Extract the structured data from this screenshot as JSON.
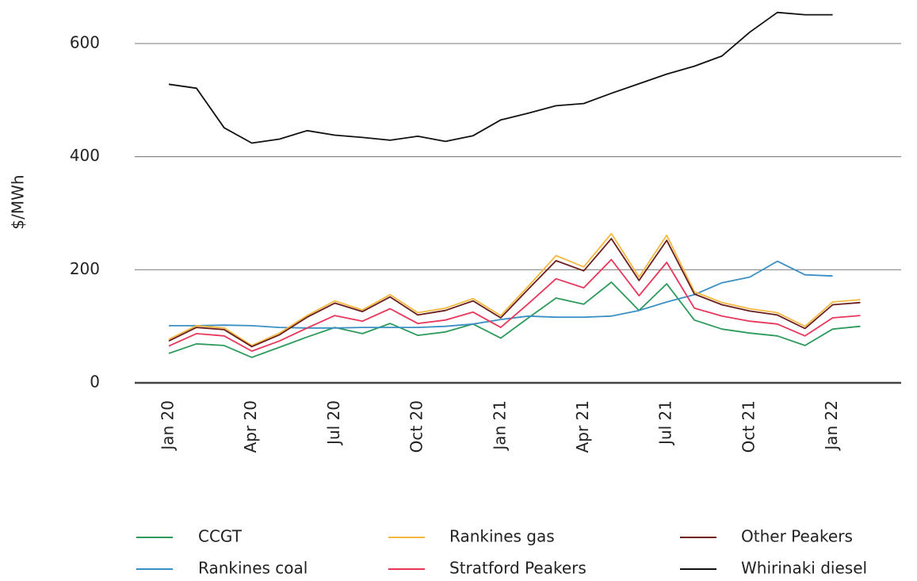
{
  "chart_data": {
    "type": "line",
    "y_label": "$/MWh",
    "categories": [
      "Jan 20",
      null,
      null,
      "Apr 20",
      null,
      null,
      "Jul 20",
      null,
      null,
      "Oct 20",
      null,
      null,
      "Jan 21",
      null,
      null,
      "Apr 21",
      null,
      null,
      "Jul 21",
      null,
      null,
      "Oct 21",
      null,
      null,
      "Jan 22",
      null
    ],
    "ylim": [
      0,
      670
    ],
    "yticks": [
      0,
      200,
      400,
      600
    ],
    "grid": true,
    "series": [
      {
        "name": "CCGT",
        "color": "#2e9a5c",
        "values": [
          52,
          69,
          66,
          45,
          63,
          81,
          98,
          87,
          105,
          84,
          90,
          104,
          79,
          115,
          150,
          139,
          178,
          128,
          175,
          111,
          95,
          88,
          83,
          66,
          95,
          100
        ]
      },
      {
        "name": "Rankines coal",
        "color": "#3a8fc4",
        "values": [
          101,
          101,
          102,
          101,
          98,
          97,
          97,
          98,
          98,
          98,
          100,
          104,
          112,
          118,
          116,
          116,
          118,
          128,
          143,
          156,
          177,
          187,
          215,
          191,
          189,
          null
        ]
      },
      {
        "name": "Rankines gas",
        "color": "#f5b942",
        "values": [
          77,
          101,
          97,
          66,
          88,
          119,
          145,
          129,
          156,
          124,
          132,
          149,
          119,
          171,
          225,
          205,
          264,
          187,
          261,
          161,
          142,
          131,
          124,
          100,
          143,
          147
        ]
      },
      {
        "name": "Stratford Peakers",
        "color": "#e8375a",
        "values": [
          65,
          87,
          83,
          56,
          74,
          97,
          119,
          109,
          131,
          105,
          111,
          125,
          98,
          140,
          184,
          168,
          218,
          154,
          213,
          132,
          118,
          109,
          104,
          83,
          115,
          119
        ]
      },
      {
        "name": "Other Peakers",
        "color": "#6b1d1d",
        "values": [
          74,
          98,
          94,
          64,
          85,
          116,
          141,
          126,
          152,
          120,
          128,
          145,
          115,
          166,
          216,
          198,
          255,
          181,
          252,
          157,
          138,
          127,
          120,
          96,
          138,
          142
        ]
      },
      {
        "name": "Whirinaki diesel",
        "color": "#111111",
        "values": [
          528,
          521,
          451,
          424,
          431,
          446,
          438,
          434,
          429,
          436,
          427,
          437,
          465,
          477,
          490,
          494,
          512,
          529,
          546,
          560,
          578,
          620,
          655,
          651,
          651,
          null
        ]
      }
    ]
  }
}
